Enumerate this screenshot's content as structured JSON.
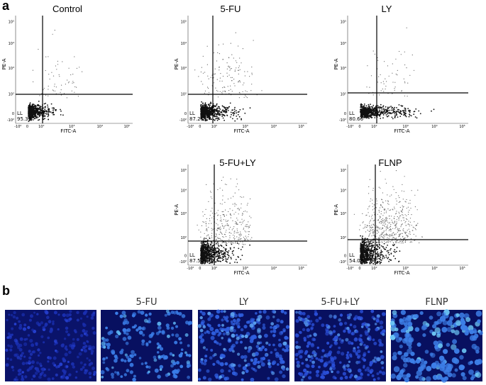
{
  "labels": {
    "a": "a",
    "b": "b"
  },
  "flow_panels": [
    {
      "title": "Control",
      "quadrant": "LL",
      "quadrant_value": "95.39"
    },
    {
      "title": "5-FU",
      "quadrant": "LL",
      "quadrant_value": "87.21"
    },
    {
      "title": "LY",
      "quadrant": "LL",
      "quadrant_value": "80.66"
    },
    {
      "title": "5-FU+LY",
      "quadrant": "LL",
      "quadrant_value": "87.50"
    },
    {
      "title": "FLNP",
      "quadrant": "LL",
      "quadrant_value": "54.08"
    }
  ],
  "axes": {
    "x_label": "FITC-A",
    "y_label": "PE-A",
    "x_ticks": [
      "-10²",
      "0",
      "10²",
      "10³",
      "10⁴",
      "10⁵"
    ],
    "y_ticks": [
      "-10²",
      "0",
      "10²",
      "10³",
      "10⁴",
      "10⁵"
    ]
  },
  "images": [
    {
      "label": "Control"
    },
    {
      "label": "5-FU"
    },
    {
      "label": "LY"
    },
    {
      "label": "5-FU+LY"
    },
    {
      "label": "FLNP"
    }
  ]
}
